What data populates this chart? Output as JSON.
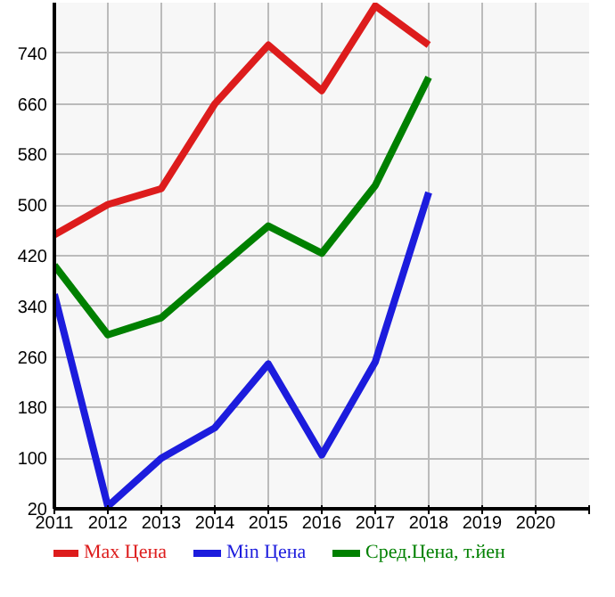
{
  "chart_data": {
    "type": "line",
    "x": [
      2011,
      2012,
      2013,
      2014,
      2015,
      2016,
      2017,
      2018
    ],
    "series": [
      {
        "name": "Max Цена",
        "color": "#dd1c1c",
        "values": [
          453,
          501,
          526,
          660,
          753,
          681,
          815,
          753
        ]
      },
      {
        "name": "Min Цена",
        "color": "#1c1cdd",
        "values": [
          359,
          24,
          100,
          148,
          249,
          105,
          252,
          520
        ]
      },
      {
        "name": "Сред.Цена, т.йен",
        "color": "#008000",
        "values": [
          405,
          295,
          322,
          395,
          467,
          424,
          531,
          702
        ]
      }
    ],
    "xlim": [
      2011,
      2021
    ],
    "xticks": [
      2011,
      2012,
      2013,
      2014,
      2015,
      2016,
      2017,
      2018,
      2019,
      2020,
      {
        "value": 2021,
        "label": null
      }
    ],
    "ylim": [
      20,
      820
    ],
    "yticks": [
      20,
      100,
      180,
      260,
      340,
      420,
      500,
      580,
      660,
      740,
      {
        "value": 820,
        "label": null
      }
    ],
    "grid": true,
    "legend": "bottom",
    "marker": "none",
    "line_style": "solid"
  }
}
